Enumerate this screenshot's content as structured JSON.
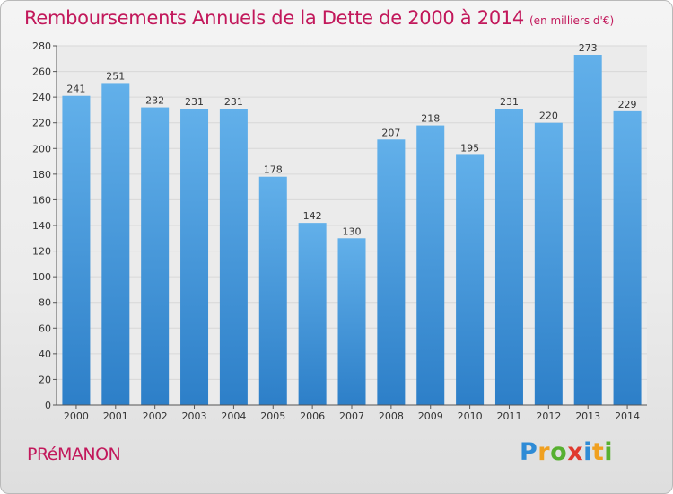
{
  "title": "Remboursements Annuels de la Dette de 2000 à 2014",
  "unit_note": "(en milliers d'€)",
  "commune": "PRéMANON",
  "brand": {
    "letters": [
      "P",
      "r",
      "o",
      "x",
      "i",
      "t",
      "i"
    ],
    "colors": [
      "#2e8bd6",
      "#f0a020",
      "#57b030",
      "#e03a2e",
      "#2e8bd6",
      "#f0a020",
      "#57b030"
    ]
  },
  "colors": {
    "title": "#c2185b",
    "bar_light": "#62b0ea",
    "bar_dark": "#2d7fc8",
    "grid": "#d8d8d8",
    "axis": "#555555"
  },
  "chart_data": {
    "type": "bar",
    "categories": [
      "2000",
      "2001",
      "2002",
      "2003",
      "2004",
      "2005",
      "2006",
      "2007",
      "2008",
      "2009",
      "2010",
      "2011",
      "2012",
      "2013",
      "2014"
    ],
    "values": [
      241,
      251,
      232,
      231,
      231,
      178,
      142,
      130,
      207,
      218,
      195,
      231,
      220,
      273,
      229
    ],
    "data_labels": [
      "241",
      "251",
      "232",
      "231",
      "231",
      "178",
      "142",
      "130",
      "207",
      "218",
      "195",
      "231",
      "220",
      "273",
      "229"
    ],
    "y_ticks": [
      "0",
      "20",
      "40",
      "60",
      "80",
      "100",
      "120",
      "140",
      "160",
      "180",
      "200",
      "220",
      "240",
      "260",
      "280"
    ],
    "ylim": [
      0,
      280
    ],
    "grid": true
  }
}
